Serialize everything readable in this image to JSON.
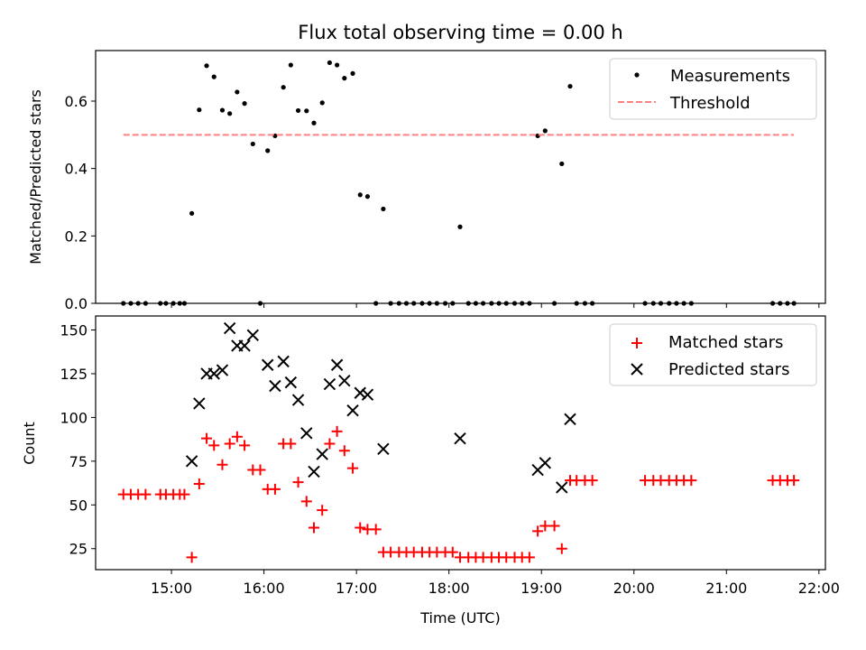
{
  "chart_data": [
    {
      "type": "scatter",
      "title": "Flux total observing time = 0.00 h",
      "xlabel": "",
      "ylabel": "Matched/Predicted stars",
      "xlim": [
        14.18,
        22.07
      ],
      "ylim": [
        0,
        0.75
      ],
      "yticks": [
        0.0,
        0.2,
        0.4,
        0.6
      ],
      "ytick_labels": [
        "0.0",
        "0.2",
        "0.4",
        "0.6"
      ],
      "grid": false,
      "legend_position": "top-right",
      "series": [
        {
          "name": "Measurements",
          "marker": "dot",
          "color": "#000000",
          "x": [
            14.48,
            14.56,
            14.64,
            14.72,
            14.88,
            14.94,
            15.02,
            15.09,
            15.14,
            15.22,
            15.3,
            15.38,
            15.46,
            15.55,
            15.63,
            15.71,
            15.79,
            15.88,
            15.96,
            16.04,
            16.12,
            16.21,
            16.29,
            16.37,
            16.46,
            16.54,
            16.63,
            16.71,
            16.79,
            16.87,
            16.96,
            17.04,
            17.12,
            17.21,
            17.29,
            17.37,
            17.46,
            17.54,
            17.62,
            17.71,
            17.79,
            17.87,
            17.96,
            18.04,
            18.12,
            18.21,
            18.29,
            18.37,
            18.46,
            18.54,
            18.62,
            18.71,
            18.79,
            18.87,
            18.96,
            19.04,
            19.14,
            19.22,
            19.31,
            19.38,
            19.47,
            19.55,
            20.12,
            20.21,
            20.29,
            20.38,
            20.46,
            20.54,
            20.62,
            21.5,
            21.58,
            21.66,
            21.73
          ],
          "y": [
            0.0,
            0.0,
            0.0,
            0.0,
            0.0,
            0.0,
            0.0,
            0.0,
            0.0,
            0.267,
            0.574,
            0.705,
            0.672,
            0.573,
            0.563,
            0.627,
            0.593,
            0.473,
            0.0,
            0.453,
            0.497,
            0.641,
            0.707,
            0.572,
            0.571,
            0.535,
            0.595,
            0.714,
            0.707,
            0.668,
            0.682,
            0.322,
            0.317,
            0.0,
            0.28,
            0.0,
            0.0,
            0.0,
            0.0,
            0.0,
            0.0,
            0.0,
            0.0,
            0.0,
            0.227,
            0.0,
            0.0,
            0.0,
            0.0,
            0.0,
            0.0,
            0.0,
            0.0,
            0.0,
            0.497,
            0.512,
            0.0,
            0.414,
            0.644,
            0.0,
            0.0,
            0.0,
            0.0,
            0.0,
            0.0,
            0.0,
            0.0,
            0.0,
            0.0,
            0.0,
            0.0,
            0.0,
            0.0
          ]
        },
        {
          "name": "Threshold",
          "marker": "dashed-line",
          "color": "#ff8080",
          "x": [
            14.48,
            21.73
          ],
          "y": [
            0.5,
            0.5
          ]
        }
      ]
    },
    {
      "type": "scatter",
      "title": "",
      "xlabel": "Time (UTC)",
      "ylabel": "Count",
      "xlim": [
        14.18,
        22.07
      ],
      "ylim": [
        13,
        158
      ],
      "xticks": [
        15,
        16,
        17,
        18,
        19,
        20,
        21,
        22
      ],
      "xtick_labels": [
        "15:00",
        "16:00",
        "17:00",
        "18:00",
        "19:00",
        "20:00",
        "21:00",
        "22:00"
      ],
      "yticks": [
        25,
        50,
        75,
        100,
        125,
        150
      ],
      "ytick_labels": [
        "25",
        "50",
        "75",
        "100",
        "125",
        "150"
      ],
      "grid": false,
      "legend_position": "top-right",
      "series": [
        {
          "name": "Matched stars",
          "marker": "plus",
          "color": "#ff0000",
          "x": [
            14.48,
            14.56,
            14.64,
            14.72,
            14.88,
            14.94,
            15.02,
            15.09,
            15.14,
            15.22,
            15.3,
            15.38,
            15.46,
            15.55,
            15.63,
            15.71,
            15.79,
            15.88,
            15.96,
            16.04,
            16.12,
            16.21,
            16.29,
            16.37,
            16.46,
            16.54,
            16.63,
            16.71,
            16.79,
            16.87,
            16.96,
            17.04,
            17.12,
            17.21,
            17.29,
            17.37,
            17.46,
            17.54,
            17.62,
            17.71,
            17.79,
            17.87,
            17.96,
            18.04,
            18.12,
            18.21,
            18.29,
            18.37,
            18.46,
            18.54,
            18.62,
            18.71,
            18.79,
            18.87,
            18.96,
            19.04,
            19.14,
            19.22,
            19.31,
            19.38,
            19.47,
            19.55,
            20.12,
            20.21,
            20.29,
            20.38,
            20.46,
            20.54,
            20.62,
            21.5,
            21.58,
            21.66,
            21.73
          ],
          "y": [
            56,
            56,
            56,
            56,
            56,
            56,
            56,
            56,
            56,
            20,
            62,
            88,
            84,
            73,
            85,
            89,
            84,
            70,
            70,
            59,
            59,
            85,
            85,
            63,
            52,
            37,
            47,
            85,
            92,
            81,
            71,
            37,
            36,
            36,
            23,
            23,
            23,
            23,
            23,
            23,
            23,
            23,
            23,
            23,
            20,
            20,
            20,
            20,
            20,
            20,
            20,
            20,
            20,
            20,
            35,
            38,
            38,
            25,
            64,
            64,
            64,
            64,
            64,
            64,
            64,
            64,
            64,
            64,
            64,
            64,
            64,
            64,
            64
          ]
        },
        {
          "name": "Predicted stars",
          "marker": "x",
          "color": "#000000",
          "x": [
            15.22,
            15.3,
            15.38,
            15.46,
            15.55,
            15.63,
            15.71,
            15.79,
            15.88,
            16.04,
            16.12,
            16.21,
            16.29,
            16.37,
            16.46,
            16.54,
            16.63,
            16.71,
            16.79,
            16.87,
            16.96,
            17.04,
            17.12,
            17.29,
            18.12,
            18.96,
            19.04,
            19.22,
            19.31
          ],
          "y": [
            75,
            108,
            125,
            125,
            127,
            151,
            141,
            141,
            147,
            130,
            118,
            132,
            120,
            110,
            91,
            69,
            79,
            119,
            130,
            121,
            104,
            114,
            113,
            82,
            88,
            70,
            74,
            60,
            99
          ]
        }
      ]
    }
  ]
}
